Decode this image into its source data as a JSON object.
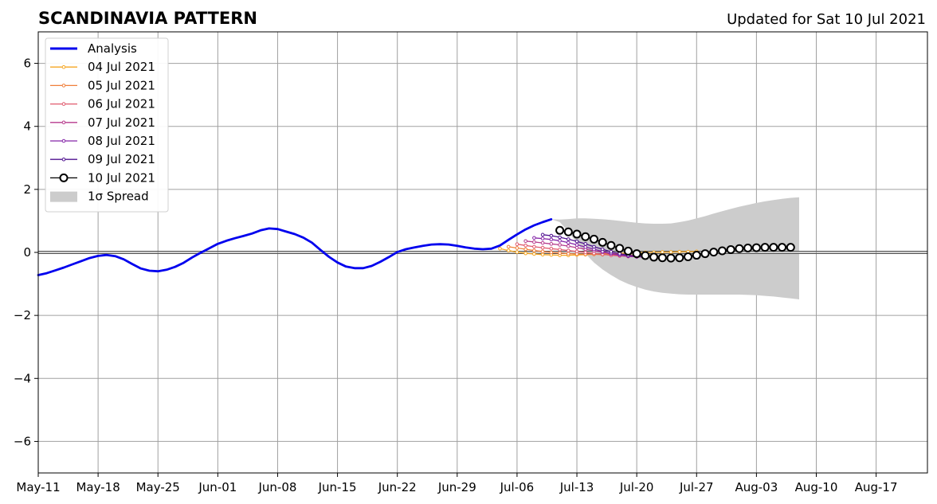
{
  "titles": {
    "left": "SCANDINAVIA PATTERN",
    "right": "Updated for Sat 10 Jul 2021"
  },
  "chart_data": {
    "type": "line",
    "title": "SCANDINAVIA PATTERN",
    "subtitle": "Updated for Sat 10 Jul 2021",
    "xlim": [
      "2021-05-11",
      "2021-08-23"
    ],
    "ylim": [
      -7,
      7
    ],
    "grid": true,
    "legend_position": "top-left",
    "x_ticks": [
      "May-11",
      "May-18",
      "May-25",
      "Jun-01",
      "Jun-08",
      "Jun-15",
      "Jun-22",
      "Jun-29",
      "Jul-06",
      "Jul-13",
      "Jul-20",
      "Jul-27",
      "Aug-03",
      "Aug-10",
      "Aug-17"
    ],
    "x_tick_dates": [
      "2021-05-11",
      "2021-05-18",
      "2021-05-25",
      "2021-06-01",
      "2021-06-08",
      "2021-06-15",
      "2021-06-22",
      "2021-06-29",
      "2021-07-06",
      "2021-07-13",
      "2021-07-20",
      "2021-07-27",
      "2021-08-03",
      "2021-08-10",
      "2021-08-17"
    ],
    "y_ticks": [
      6,
      4,
      2,
      0,
      -2,
      -4,
      -6
    ],
    "y_tick_labels": [
      "6",
      "4",
      "2",
      "0",
      "−2",
      "−4",
      "−6"
    ],
    "analysis": {
      "name": "Analysis",
      "color": "#0000ee",
      "points": [
        [
          "2021-05-11",
          -0.72
        ],
        [
          "2021-05-12",
          -0.66
        ],
        [
          "2021-05-13",
          -0.57
        ],
        [
          "2021-05-14",
          -0.48
        ],
        [
          "2021-05-15",
          -0.38
        ],
        [
          "2021-05-16",
          -0.28
        ],
        [
          "2021-05-17",
          -0.18
        ],
        [
          "2021-05-18",
          -0.11
        ],
        [
          "2021-05-19",
          -0.08
        ],
        [
          "2021-05-20",
          -0.12
        ],
        [
          "2021-05-21",
          -0.22
        ],
        [
          "2021-05-22",
          -0.37
        ],
        [
          "2021-05-23",
          -0.51
        ],
        [
          "2021-05-24",
          -0.58
        ],
        [
          "2021-05-25",
          -0.6
        ],
        [
          "2021-05-26",
          -0.55
        ],
        [
          "2021-05-27",
          -0.46
        ],
        [
          "2021-05-28",
          -0.33
        ],
        [
          "2021-05-29",
          -0.16
        ],
        [
          "2021-05-30",
          -0.01
        ],
        [
          "2021-05-31",
          0.13
        ],
        [
          "2021-06-01",
          0.27
        ],
        [
          "2021-06-02",
          0.37
        ],
        [
          "2021-06-03",
          0.45
        ],
        [
          "2021-06-04",
          0.52
        ],
        [
          "2021-06-05",
          0.6
        ],
        [
          "2021-06-06",
          0.7
        ],
        [
          "2021-06-07",
          0.76
        ],
        [
          "2021-06-08",
          0.74
        ],
        [
          "2021-06-09",
          0.66
        ],
        [
          "2021-06-10",
          0.58
        ],
        [
          "2021-06-11",
          0.47
        ],
        [
          "2021-06-12",
          0.31
        ],
        [
          "2021-06-13",
          0.08
        ],
        [
          "2021-06-14",
          -0.14
        ],
        [
          "2021-06-15",
          -0.32
        ],
        [
          "2021-06-16",
          -0.45
        ],
        [
          "2021-06-17",
          -0.5
        ],
        [
          "2021-06-18",
          -0.5
        ],
        [
          "2021-06-19",
          -0.43
        ],
        [
          "2021-06-20",
          -0.3
        ],
        [
          "2021-06-21",
          -0.15
        ],
        [
          "2021-06-22",
          0.01
        ],
        [
          "2021-06-23",
          0.1
        ],
        [
          "2021-06-24",
          0.16
        ],
        [
          "2021-06-25",
          0.21
        ],
        [
          "2021-06-26",
          0.25
        ],
        [
          "2021-06-27",
          0.26
        ],
        [
          "2021-06-28",
          0.25
        ],
        [
          "2021-06-29",
          0.21
        ],
        [
          "2021-06-30",
          0.16
        ],
        [
          "2021-07-01",
          0.12
        ],
        [
          "2021-07-02",
          0.1
        ],
        [
          "2021-07-03",
          0.12
        ],
        [
          "2021-07-04",
          0.22
        ],
        [
          "2021-07-05",
          0.4
        ],
        [
          "2021-07-06",
          0.57
        ],
        [
          "2021-07-07",
          0.73
        ],
        [
          "2021-07-08",
          0.86
        ],
        [
          "2021-07-09",
          0.96
        ],
        [
          "2021-07-10",
          1.05
        ]
      ]
    },
    "forecasts": [
      {
        "name": "04 Jul 2021",
        "color": "#f5a623",
        "start": "2021-07-04",
        "values": [
          0.12,
          0.06,
          0.01,
          -0.03,
          -0.05,
          -0.07,
          -0.08,
          -0.09,
          -0.09,
          -0.08,
          -0.07,
          -0.06,
          -0.05,
          -0.04,
          -0.03,
          -0.02,
          -0.01,
          0.0,
          0.0,
          0.01,
          0.01,
          0.02,
          0.02,
          0.03
        ]
      },
      {
        "name": "05 Jul 2021",
        "color": "#f07f3a",
        "start": "2021-07-05",
        "values": [
          0.18,
          0.14,
          0.1,
          0.06,
          0.03,
          0.0,
          -0.02,
          -0.04,
          -0.05,
          -0.06,
          -0.06,
          -0.07,
          -0.07,
          -0.08,
          -0.08,
          -0.09,
          -0.08
        ]
      },
      {
        "name": "06 Jul 2021",
        "color": "#e05a6e",
        "start": "2021-07-06",
        "values": [
          0.26,
          0.22,
          0.18,
          0.15,
          0.12,
          0.09,
          0.06,
          0.03,
          0.0,
          -0.03,
          -0.06,
          -0.09,
          -0.11,
          -0.13,
          -0.14,
          -0.14
        ]
      },
      {
        "name": "07 Jul 2021",
        "color": "#b63a8c",
        "start": "2021-07-07",
        "values": [
          0.36,
          0.33,
          0.3,
          0.27,
          0.24,
          0.2,
          0.15,
          0.1,
          0.05,
          0.0,
          -0.05,
          -0.09,
          -0.12,
          -0.14,
          -0.15
        ]
      },
      {
        "name": "08 Jul 2021",
        "color": "#8424a8",
        "start": "2021-07-08",
        "values": [
          0.46,
          0.44,
          0.41,
          0.37,
          0.31,
          0.24,
          0.17,
          0.1,
          0.03,
          -0.03,
          -0.08,
          -0.12,
          -0.14,
          -0.15
        ]
      },
      {
        "name": "09 Jul 2021",
        "color": "#4f1290",
        "start": "2021-07-09",
        "values": [
          0.56,
          0.53,
          0.48,
          0.42,
          0.35,
          0.27,
          0.18,
          0.1,
          0.02,
          -0.04,
          -0.09,
          -0.12,
          -0.14
        ]
      },
      {
        "name": "10 Jul 2021",
        "color": "#000000",
        "start": "2021-07-11",
        "values": [
          0.7,
          0.65,
          0.58,
          0.5,
          0.42,
          0.32,
          0.22,
          0.13,
          0.04,
          -0.04,
          -0.1,
          -0.15,
          -0.17,
          -0.18,
          -0.17,
          -0.14,
          -0.09,
          -0.04,
          0.01,
          0.05,
          0.09,
          0.12,
          0.14,
          0.15,
          0.16,
          0.16,
          0.16,
          0.16
        ]
      }
    ],
    "spread": {
      "name": "1σ Spread",
      "color": "#cccccc",
      "points": [
        [
          "2021-07-10",
          1.05,
          1.05
        ],
        [
          "2021-07-11",
          1.04,
          0.96
        ],
        [
          "2021-07-12",
          1.06,
          0.66
        ],
        [
          "2021-07-13",
          1.08,
          0.3
        ],
        [
          "2021-07-14",
          1.08,
          -0.04
        ],
        [
          "2021-07-15",
          1.07,
          -0.32
        ],
        [
          "2021-07-16",
          1.05,
          -0.54
        ],
        [
          "2021-07-17",
          1.03,
          -0.72
        ],
        [
          "2021-07-18",
          1.0,
          -0.88
        ],
        [
          "2021-07-19",
          0.97,
          -1.0
        ],
        [
          "2021-07-20",
          0.94,
          -1.1
        ],
        [
          "2021-07-21",
          0.92,
          -1.18
        ],
        [
          "2021-07-22",
          0.91,
          -1.24
        ],
        [
          "2021-07-23",
          0.91,
          -1.28
        ],
        [
          "2021-07-24",
          0.92,
          -1.31
        ],
        [
          "2021-07-25",
          0.96,
          -1.33
        ],
        [
          "2021-07-26",
          1.01,
          -1.34
        ],
        [
          "2021-07-27",
          1.08,
          -1.34
        ],
        [
          "2021-07-28",
          1.15,
          -1.34
        ],
        [
          "2021-07-29",
          1.23,
          -1.34
        ],
        [
          "2021-07-30",
          1.31,
          -1.34
        ],
        [
          "2021-07-31",
          1.38,
          -1.34
        ],
        [
          "2021-08-01",
          1.45,
          -1.34
        ],
        [
          "2021-08-02",
          1.51,
          -1.35
        ],
        [
          "2021-08-03",
          1.57,
          -1.36
        ],
        [
          "2021-08-04",
          1.62,
          -1.38
        ],
        [
          "2021-08-05",
          1.66,
          -1.4
        ],
        [
          "2021-08-06",
          1.7,
          -1.43
        ],
        [
          "2021-08-07",
          1.73,
          -1.46
        ],
        [
          "2021-08-08",
          1.75,
          -1.49
        ]
      ]
    },
    "legend": [
      {
        "label": "Analysis",
        "kind": "thick-line",
        "color": "#0000ee"
      },
      {
        "label": "04 Jul 2021",
        "kind": "small-marker-line",
        "color": "#f5a623"
      },
      {
        "label": "05 Jul 2021",
        "kind": "small-marker-line",
        "color": "#f07f3a"
      },
      {
        "label": "06 Jul 2021",
        "kind": "small-marker-line",
        "color": "#e05a6e"
      },
      {
        "label": "07 Jul 2021",
        "kind": "small-marker-line",
        "color": "#b63a8c"
      },
      {
        "label": "08 Jul 2021",
        "kind": "small-marker-line",
        "color": "#8424a8"
      },
      {
        "label": "09 Jul 2021",
        "kind": "small-marker-line",
        "color": "#4f1290"
      },
      {
        "label": "10 Jul 2021",
        "kind": "big-marker-line",
        "color": "#000000"
      },
      {
        "label": "1σ Spread",
        "kind": "patch",
        "color": "#cccccc"
      }
    ]
  }
}
